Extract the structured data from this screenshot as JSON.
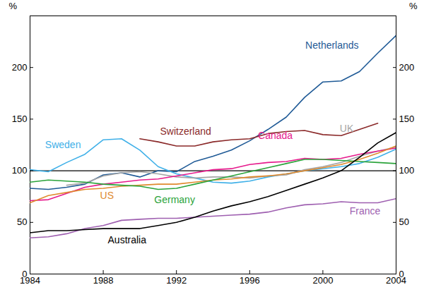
{
  "chart_data": {
    "type": "line",
    "x": [
      1984,
      1985,
      1986,
      1987,
      1988,
      1989,
      1990,
      1991,
      1992,
      1993,
      1994,
      1995,
      1996,
      1997,
      1998,
      1999,
      2000,
      2001,
      2002,
      2003,
      2004
    ],
    "xlim": [
      1984,
      2004
    ],
    "xticks": [
      1984,
      1988,
      1992,
      1996,
      2000,
      2004
    ],
    "ylim": [
      0,
      250
    ],
    "yticks": [
      0,
      50,
      100,
      150,
      200
    ],
    "y_label": "%",
    "reference_line": 100,
    "grid": false,
    "series": [
      {
        "name": "Netherlands",
        "color": "#1f5a96",
        "values": [
          83,
          82,
          84,
          87,
          96,
          98,
          94,
          100,
          99,
          109,
          114,
          120,
          129,
          140,
          152,
          171,
          186,
          187,
          196,
          214,
          231
        ]
      },
      {
        "name": "Switzerland",
        "color": "#8b2a2a",
        "values": [
          null,
          null,
          null,
          null,
          null,
          null,
          131,
          128,
          124,
          124,
          128,
          130,
          131,
          136,
          138,
          139,
          135,
          134,
          140,
          146,
          null
        ]
      },
      {
        "name": "Sweden",
        "color": "#3fb0e8",
        "values": [
          101,
          99,
          108,
          116,
          130,
          131,
          120,
          104,
          97,
          93,
          89,
          88,
          90,
          94,
          97,
          100,
          102,
          104,
          107,
          113,
          121
        ]
      },
      {
        "name": "UK",
        "color": "#a6a6a6",
        "values": [
          null,
          null,
          86,
          88,
          95,
          98,
          99,
          97,
          94,
          93,
          94,
          94,
          93,
          95,
          96,
          101,
          104,
          108,
          114,
          119,
          123
        ]
      },
      {
        "name": "Canada",
        "color": "#e6198c",
        "values": [
          71,
          72,
          78,
          84,
          87,
          89,
          91,
          92,
          95,
          98,
          101,
          102,
          106,
          108,
          109,
          112,
          111,
          112,
          116,
          119,
          122
        ]
      },
      {
        "name": "US",
        "color": "#e08a2e",
        "values": [
          69,
          76,
          79,
          82,
          83,
          85,
          86,
          87,
          87,
          89,
          91,
          92,
          94,
          95,
          97,
          100,
          103,
          106,
          111,
          117,
          124
        ]
      },
      {
        "name": "Germany",
        "color": "#2aa33a",
        "values": [
          89,
          91,
          90,
          89,
          87,
          86,
          85,
          82,
          83,
          87,
          91,
          95,
          99,
          103,
          107,
          111,
          111,
          110,
          109,
          108,
          107
        ]
      },
      {
        "name": "France",
        "color": "#9e5fb0",
        "values": [
          35,
          36,
          39,
          44,
          47,
          52,
          53,
          54,
          54,
          55,
          56,
          57,
          58,
          60,
          64,
          67,
          68,
          70,
          69,
          69,
          73
        ]
      },
      {
        "name": "Australia",
        "color": "#000000",
        "values": [
          40,
          42,
          42,
          43,
          44,
          44,
          44,
          47,
          50,
          55,
          61,
          66,
          70,
          75,
          81,
          87,
          93,
          100,
          113,
          127,
          137
        ]
      }
    ]
  }
}
